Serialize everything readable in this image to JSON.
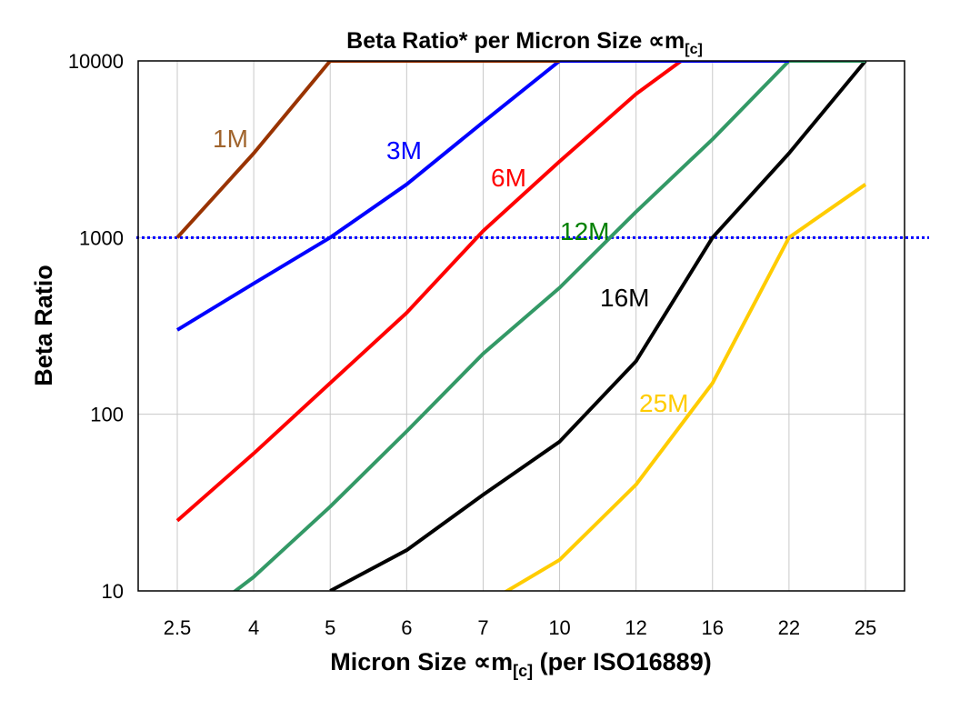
{
  "chart_data": {
    "type": "line",
    "title": "Beta Ratio* per Micron Size ∝m",
    "title_sub": "[c]",
    "xlabel": "Micron Size ∝m",
    "xlabel_sub": "[c]",
    "xlabel_suffix": " (per ISO16889)",
    "ylabel": "Beta Ratio",
    "y_scale": "log",
    "ylim": [
      10,
      10000
    ],
    "y_ticks": [
      "10",
      "100",
      "1000",
      "10000"
    ],
    "categories": [
      "2.5",
      "4",
      "5",
      "6",
      "7",
      "10",
      "12",
      "16",
      "22",
      "25"
    ],
    "grid": true,
    "reference_line": {
      "y": 1000,
      "style": "dotted",
      "color": "#0000FF"
    },
    "series": [
      {
        "name": "25M",
        "color": "#FFCC00",
        "label_color": "#FFCC00",
        "values": [
          null,
          null,
          null,
          null,
          8.3,
          15,
          40,
          150,
          1000,
          2000
        ]
      },
      {
        "name": "16M",
        "color": "#000000",
        "label_color": "#000000",
        "values": [
          null,
          null,
          10,
          17,
          35,
          70,
          200,
          1000,
          3000,
          10000
        ]
      },
      {
        "name": "12M",
        "color": "#339966",
        "label_color": "#008000",
        "values": [
          5.6,
          12,
          30,
          80,
          220,
          520,
          1400,
          3600,
          10000,
          10000
        ]
      },
      {
        "name": "6M",
        "color": "#FF0000",
        "label_color": "#FF0000",
        "values": [
          25,
          60,
          150,
          375,
          1090,
          2700,
          6500,
          13500,
          null,
          null
        ]
      },
      {
        "name": "3M",
        "color": "#0000FF",
        "label_color": "#0000FF",
        "values": [
          300,
          550,
          1000,
          2000,
          4500,
          10000,
          10000,
          10000,
          10000,
          null
        ]
      },
      {
        "name": "1M",
        "color": "#993300",
        "label_color": "#A0642D",
        "values": [
          1000,
          3000,
          10000,
          10000,
          10000,
          10000,
          null,
          null,
          null,
          null
        ]
      }
    ]
  }
}
